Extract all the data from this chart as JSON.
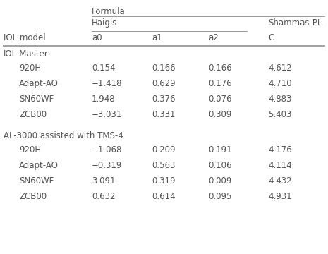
{
  "title_formula": "Formula",
  "header1": "Haigis",
  "header2": "Shammas-PL",
  "col_headers": [
    "IOL model",
    "a0",
    "a1",
    "a2",
    "C"
  ],
  "section1_label": "IOL-Master",
  "section2_label": "AL-3000 assisted with TMS-4",
  "rows_section1": [
    [
      "920H",
      "0.154",
      "0.166",
      "0.166",
      "4.612"
    ],
    [
      "Adapt-AO",
      "−1.418",
      "0.629",
      "0.176",
      "4.710"
    ],
    [
      "SN60WF",
      "1.948",
      "0.376",
      "0.076",
      "4.883"
    ],
    [
      "ZCB00",
      "−3.031",
      "0.331",
      "0.309",
      "5.403"
    ]
  ],
  "rows_section2": [
    [
      "920H",
      "−1.068",
      "0.209",
      "0.191",
      "4.176"
    ],
    [
      "Adapt-AO",
      "−0.319",
      "0.563",
      "0.106",
      "4.114"
    ],
    [
      "SN60WF",
      "3.091",
      "0.319",
      "0.009",
      "4.432"
    ],
    [
      "ZCB00",
      "0.632",
      "0.614",
      "0.095",
      "4.931"
    ]
  ],
  "text_color": "#555555",
  "line_color": "#999999",
  "bg_color": "#ffffff",
  "font_size": 8.5
}
